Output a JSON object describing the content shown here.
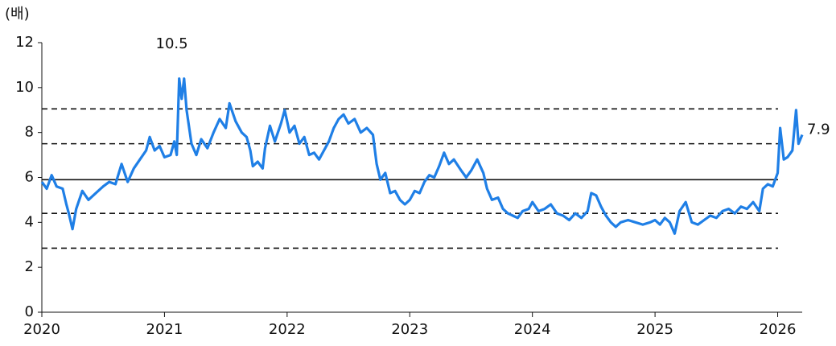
{
  "chart_data": {
    "type": "line",
    "y_label": "(배)",
    "x": [
      2020.0,
      2020.04,
      2020.08,
      2020.12,
      2020.17,
      2020.2,
      2020.22,
      2020.25,
      2020.28,
      2020.33,
      2020.38,
      2020.42,
      2020.5,
      2020.55,
      2020.6,
      2020.65,
      2020.7,
      2020.75,
      2020.8,
      2020.85,
      2020.88,
      2020.92,
      2020.96,
      2021.0,
      2021.05,
      2021.08,
      2021.1,
      2021.12,
      2021.14,
      2021.16,
      2021.18,
      2021.22,
      2021.26,
      2021.3,
      2021.35,
      2021.4,
      2021.45,
      2021.5,
      2021.53,
      2021.58,
      2021.63,
      2021.67,
      2021.7,
      2021.72,
      2021.76,
      2021.8,
      2021.82,
      2021.86,
      2021.9,
      2021.95,
      2021.98,
      2022.02,
      2022.06,
      2022.1,
      2022.14,
      2022.18,
      2022.22,
      2022.26,
      2022.3,
      2022.34,
      2022.38,
      2022.42,
      2022.46,
      2022.5,
      2022.55,
      2022.6,
      2022.65,
      2022.7,
      2022.73,
      2022.76,
      2022.8,
      2022.84,
      2022.88,
      2022.92,
      2022.96,
      2023.0,
      2023.04,
      2023.08,
      2023.12,
      2023.16,
      2023.2,
      2023.24,
      2023.28,
      2023.32,
      2023.36,
      2023.42,
      2023.46,
      2023.5,
      2023.55,
      2023.6,
      2023.63,
      2023.67,
      2023.72,
      2023.76,
      2023.8,
      2023.84,
      2023.88,
      2023.92,
      2023.97,
      2024.0,
      2024.05,
      2024.1,
      2024.15,
      2024.2,
      2024.25,
      2024.3,
      2024.35,
      2024.4,
      2024.45,
      2024.48,
      2024.52,
      2024.56,
      2024.6,
      2024.64,
      2024.68,
      2024.72,
      2024.78,
      2024.84,
      2024.9,
      2024.96,
      2025.0,
      2025.04,
      2025.08,
      2025.12,
      2025.16,
      2025.2,
      2025.25,
      2025.3,
      2025.35,
      2025.4,
      2025.45,
      2025.5,
      2025.55,
      2025.6,
      2025.65,
      2025.7,
      2025.75,
      2025.8,
      2025.85,
      2025.88,
      2025.92,
      2025.96,
      2026.0,
      2026.02,
      2026.05,
      2026.08,
      2026.12,
      2026.15,
      2026.17,
      2026.2
    ],
    "series": [
      {
        "color": "#1f7fe6",
        "values": [
          5.8,
          5.5,
          6.1,
          5.6,
          5.5,
          4.8,
          4.4,
          3.7,
          4.6,
          5.4,
          5.0,
          5.2,
          5.6,
          5.8,
          5.7,
          6.6,
          5.8,
          6.4,
          6.8,
          7.2,
          7.8,
          7.2,
          7.4,
          6.9,
          7.0,
          7.6,
          7.0,
          10.4,
          9.5,
          10.4,
          9.0,
          7.5,
          7.0,
          7.7,
          7.3,
          8.0,
          8.6,
          8.2,
          9.3,
          8.5,
          8.0,
          7.8,
          7.2,
          6.5,
          6.7,
          6.4,
          7.3,
          8.3,
          7.6,
          8.4,
          9.0,
          8.0,
          8.3,
          7.5,
          7.8,
          7.0,
          7.1,
          6.8,
          7.2,
          7.6,
          8.2,
          8.6,
          8.8,
          8.4,
          8.6,
          8.0,
          8.2,
          7.9,
          6.6,
          5.9,
          6.2,
          5.3,
          5.4,
          5.0,
          4.8,
          5.0,
          5.4,
          5.3,
          5.8,
          6.1,
          6.0,
          6.5,
          7.1,
          6.6,
          6.8,
          6.3,
          6.0,
          6.3,
          6.8,
          6.2,
          5.5,
          5.0,
          5.1,
          4.6,
          4.4,
          4.3,
          4.2,
          4.5,
          4.6,
          4.9,
          4.5,
          4.6,
          4.8,
          4.4,
          4.3,
          4.1,
          4.4,
          4.2,
          4.5,
          5.3,
          5.2,
          4.7,
          4.3,
          4.0,
          3.8,
          4.0,
          4.1,
          4.0,
          3.9,
          4.0,
          4.1,
          3.9,
          4.2,
          4.0,
          3.5,
          4.5,
          4.9,
          4.0,
          3.9,
          4.1,
          4.3,
          4.2,
          4.5,
          4.6,
          4.4,
          4.7,
          4.6,
          4.9,
          4.5,
          5.5,
          5.7,
          5.6,
          6.2,
          8.2,
          6.8,
          6.9,
          7.2,
          9.0,
          7.5,
          7.9
        ]
      }
    ],
    "xlim": [
      2020,
      2026.2
    ],
    "xticks": [
      2020,
      2021,
      2022,
      2023,
      2024,
      2025,
      2026
    ],
    "ylim": [
      0,
      12
    ],
    "yticks": [
      0,
      2,
      4,
      6,
      8,
      10,
      12
    ],
    "reference_lines": [
      {
        "value": 9.05,
        "style": "dashed"
      },
      {
        "value": 7.5,
        "style": "dashed"
      },
      {
        "value": 5.9,
        "style": "solid"
      },
      {
        "value": 4.4,
        "style": "dashed"
      },
      {
        "value": 2.85,
        "style": "dashed"
      }
    ],
    "annotations": [
      {
        "text": "10.5",
        "x": 2021.06,
        "y": 10.5
      },
      {
        "text": "7.9",
        "x": 2026.2,
        "y": 7.9
      }
    ]
  }
}
